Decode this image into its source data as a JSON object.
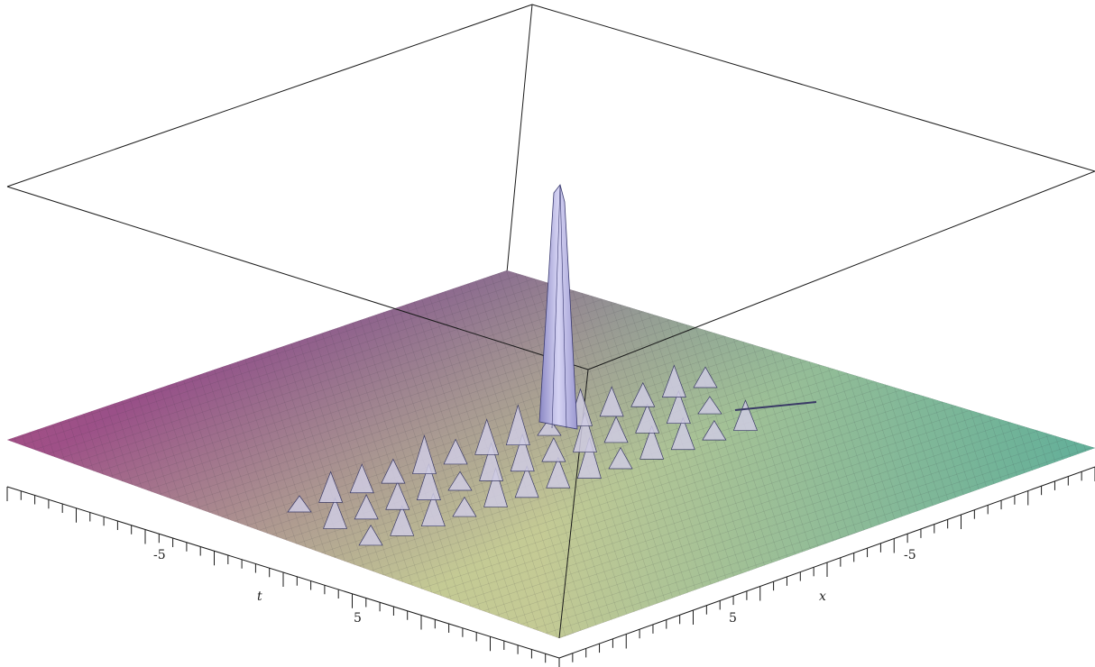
{
  "chart_data": {
    "type": "surface3d",
    "title": "",
    "axes": {
      "x": {
        "label": "x",
        "range": [
          -10,
          10
        ],
        "tick_labels": [
          "-5",
          "5"
        ]
      },
      "t": {
        "label": "t",
        "range": [
          -10,
          10
        ],
        "tick_labels": [
          "-5",
          "5"
        ]
      },
      "z": {
        "label": "",
        "range": [
          0,
          1
        ]
      }
    },
    "surface": {
      "description_values": {
        "baseline": 0,
        "main_peak": {
          "x": 0.3,
          "t": 0.5,
          "height": 1.0
        },
        "ripple_band_height": 0.2
      }
    },
    "colors": {
      "magenta": "#a24f86",
      "blue": "#4d5a97",
      "yellow_green": "#c8d095",
      "teal": "#4aa89a",
      "peak": "#c9c7ec",
      "box_line": "#1a1a1a"
    }
  }
}
